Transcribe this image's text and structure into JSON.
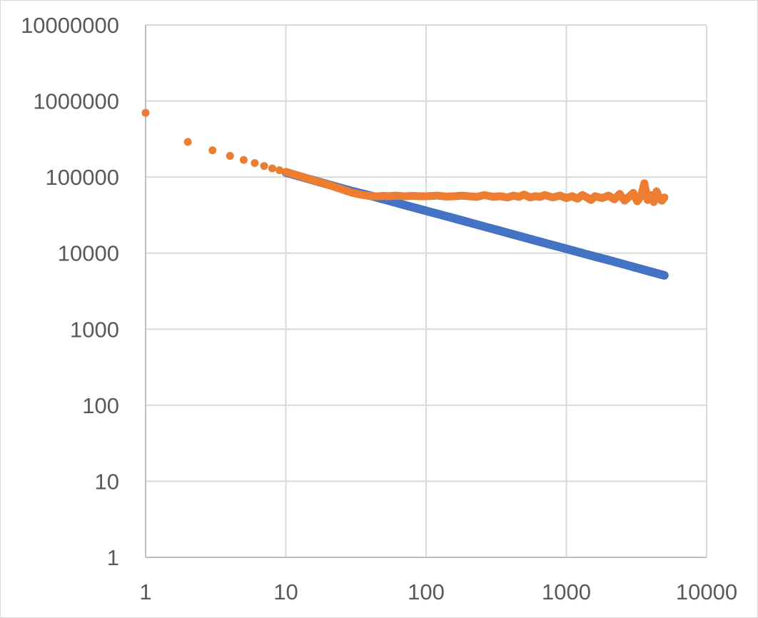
{
  "chart_data": {
    "type": "scatter",
    "title": "",
    "xlabel": "",
    "ylabel": "",
    "x_scale": "log",
    "y_scale": "log",
    "xlim": [
      1,
      10000
    ],
    "ylim": [
      1,
      10000000
    ],
    "x_ticks": [
      "1",
      "10",
      "100",
      "1000",
      "10000"
    ],
    "y_ticks": [
      "1",
      "10",
      "100",
      "1000",
      "10000",
      "100000",
      "1000000",
      "10000000"
    ],
    "grid": true,
    "legend": "none",
    "series": [
      {
        "color": "#4472c4",
        "shape": "circle",
        "x_range": [
          10,
          5000
        ],
        "x": [
          10,
          15,
          20,
          30,
          40,
          50,
          70,
          100,
          150,
          200,
          300,
          400,
          500,
          700,
          1000,
          1500,
          2000,
          3000,
          4000,
          5000
        ],
        "y": [
          115000,
          93000,
          80000,
          65000,
          57000,
          51000,
          43000,
          36000,
          29500,
          25500,
          20800,
          18000,
          16100,
          13600,
          11400,
          9300,
          8100,
          6600,
          5700,
          5100
        ]
      },
      {
        "color": "#ed7d31",
        "shape": "circle",
        "x": [
          1,
          2,
          3,
          4,
          5,
          6,
          7,
          8,
          9,
          10,
          11,
          12,
          13,
          14,
          15,
          17,
          19,
          21,
          24,
          27,
          30,
          34,
          38,
          42,
          46,
          50,
          55,
          60,
          70,
          80,
          90,
          100,
          120,
          140,
          160,
          180,
          200,
          230,
          260,
          300,
          340,
          380,
          420,
          460,
          500,
          550,
          600,
          650,
          700,
          800,
          900,
          1000,
          1100,
          1200,
          1300,
          1400,
          1500,
          1600,
          1800,
          2000,
          2200,
          2400,
          2600,
          2800,
          3000,
          3200,
          3400,
          3600,
          3800,
          4000,
          4200,
          4400,
          4600,
          4800,
          5000
        ],
        "y": [
          700000,
          290000,
          225000,
          190000,
          168000,
          153000,
          140000,
          130000,
          123000,
          117000,
          111000,
          106000,
          101000,
          97000,
          93000,
          87000,
          82000,
          77000,
          71000,
          66000,
          62000,
          59000,
          57000,
          56000,
          56000,
          56500,
          56000,
          57000,
          56000,
          56500,
          56000,
          56000,
          57000,
          55500,
          56000,
          57000,
          56000,
          55000,
          58000,
          55000,
          56000,
          54000,
          57000,
          55000,
          59000,
          54000,
          56000,
          55000,
          58000,
          54000,
          57000,
          53000,
          56000,
          52000,
          58000,
          54000,
          50000,
          56000,
          53000,
          57000,
          51000,
          60000,
          49000,
          55000,
          62000,
          48000,
          56000,
          83000,
          50000,
          58000,
          47000,
          65000,
          52000,
          49000,
          54000
        ]
      }
    ]
  }
}
